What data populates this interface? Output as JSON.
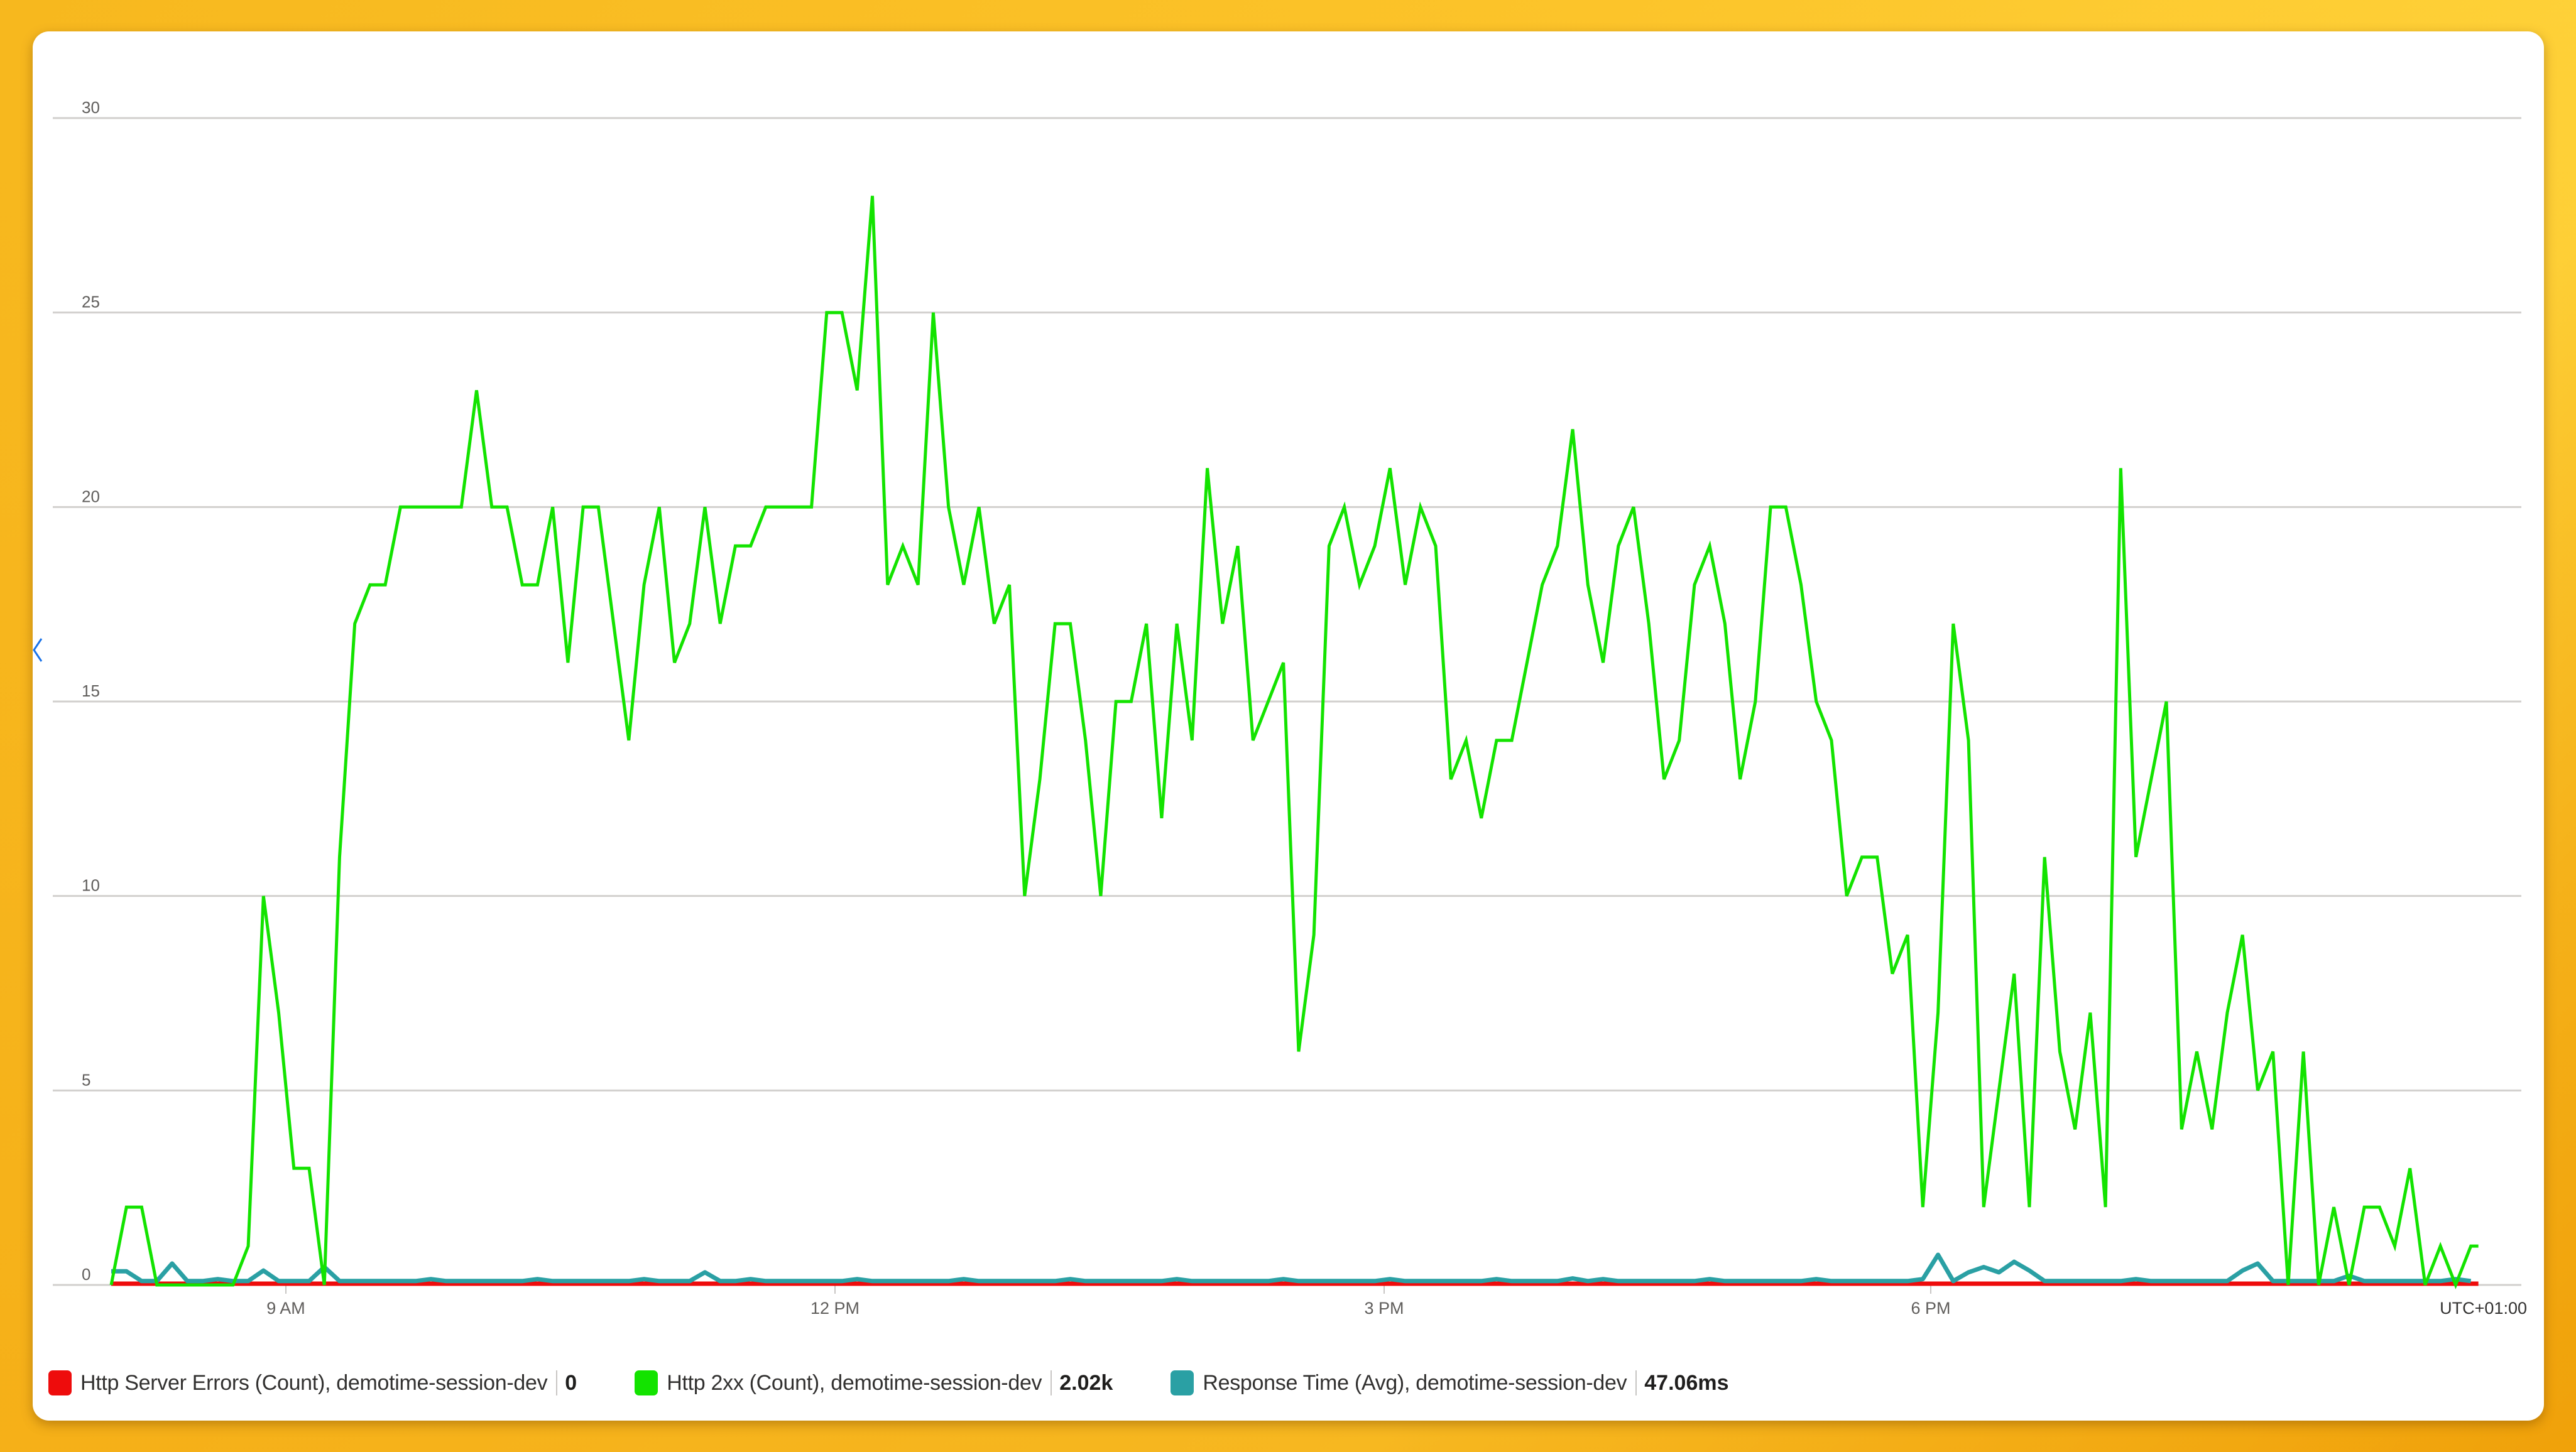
{
  "chart_data": {
    "type": "line",
    "title": "",
    "xlabel": "",
    "ylabel": "",
    "ylim": [
      0,
      30
    ],
    "yticks": [
      0,
      5,
      10,
      15,
      20,
      25,
      30
    ],
    "ytick_labels": [
      "0",
      "5",
      "10",
      "15",
      "20",
      "25",
      "30"
    ],
    "xtick_labels": [
      "9 AM",
      "12 PM",
      "3 PM",
      "6 PM"
    ],
    "timezone_label": "UTC+01:00",
    "interval_minutes": 5,
    "grid": true,
    "legend_position": "bottom",
    "series": [
      {
        "name": "Http Server Errors (Count), demotime-session-dev",
        "color": "#e81123",
        "summary": "0",
        "values": "all zero"
      },
      {
        "name": "Http 2xx (Count), demotime-session-dev",
        "color": "#13e300",
        "summary": "2.02k",
        "values": [
          0,
          2,
          2,
          0,
          0,
          0,
          0,
          0,
          0,
          1,
          10,
          7,
          3,
          3,
          0,
          11,
          17,
          18,
          18,
          20,
          20,
          20,
          20,
          20,
          23,
          20,
          20,
          18,
          18,
          20,
          16,
          20,
          20,
          17,
          14,
          18,
          20,
          16,
          17,
          20,
          17,
          19,
          19,
          20,
          20,
          20,
          20,
          25,
          25,
          23,
          28,
          18,
          19,
          18,
          25,
          20,
          18,
          20,
          17,
          18,
          10,
          13,
          17,
          17,
          14,
          10,
          15,
          15,
          17,
          12,
          17,
          14,
          21,
          17,
          19,
          14,
          15,
          16,
          6,
          9,
          19,
          20,
          18,
          19,
          21,
          18,
          20,
          19,
          13,
          14,
          12,
          14,
          14,
          16,
          18,
          19,
          22,
          18,
          16,
          19,
          20,
          17,
          13,
          14,
          18,
          19,
          17,
          13,
          15,
          20,
          20,
          18,
          15,
          14,
          10,
          11,
          11,
          8,
          9,
          2,
          7,
          17,
          14,
          2,
          5,
          8,
          2,
          11,
          6,
          4,
          7,
          2,
          21,
          11,
          13,
          15,
          4,
          6,
          4,
          7,
          9,
          5,
          6,
          0,
          6,
          0,
          2,
          0,
          2,
          2,
          1,
          3,
          0,
          1,
          0,
          1
        ]
      },
      {
        "name": "Response Time (Avg), demotime-session-dev",
        "color": "#2aa0a4",
        "summary": "47.06ms",
        "values_note": "plotted near baseline on secondary scale with small spikes around 6 PM"
      }
    ]
  },
  "legend": [
    {
      "label": "Http Server Errors (Count), demotime-session-dev",
      "value": "0",
      "color": "#e81123"
    },
    {
      "label": "Http 2xx (Count), demotime-session-dev",
      "value": "2.02k",
      "color": "#13e300"
    },
    {
      "label": "Response Time (Avg), demotime-session-dev",
      "value": "47.06ms",
      "color": "#2aa0a4"
    }
  ],
  "nav": {
    "collapse_icon": "chevron-left-icon"
  }
}
